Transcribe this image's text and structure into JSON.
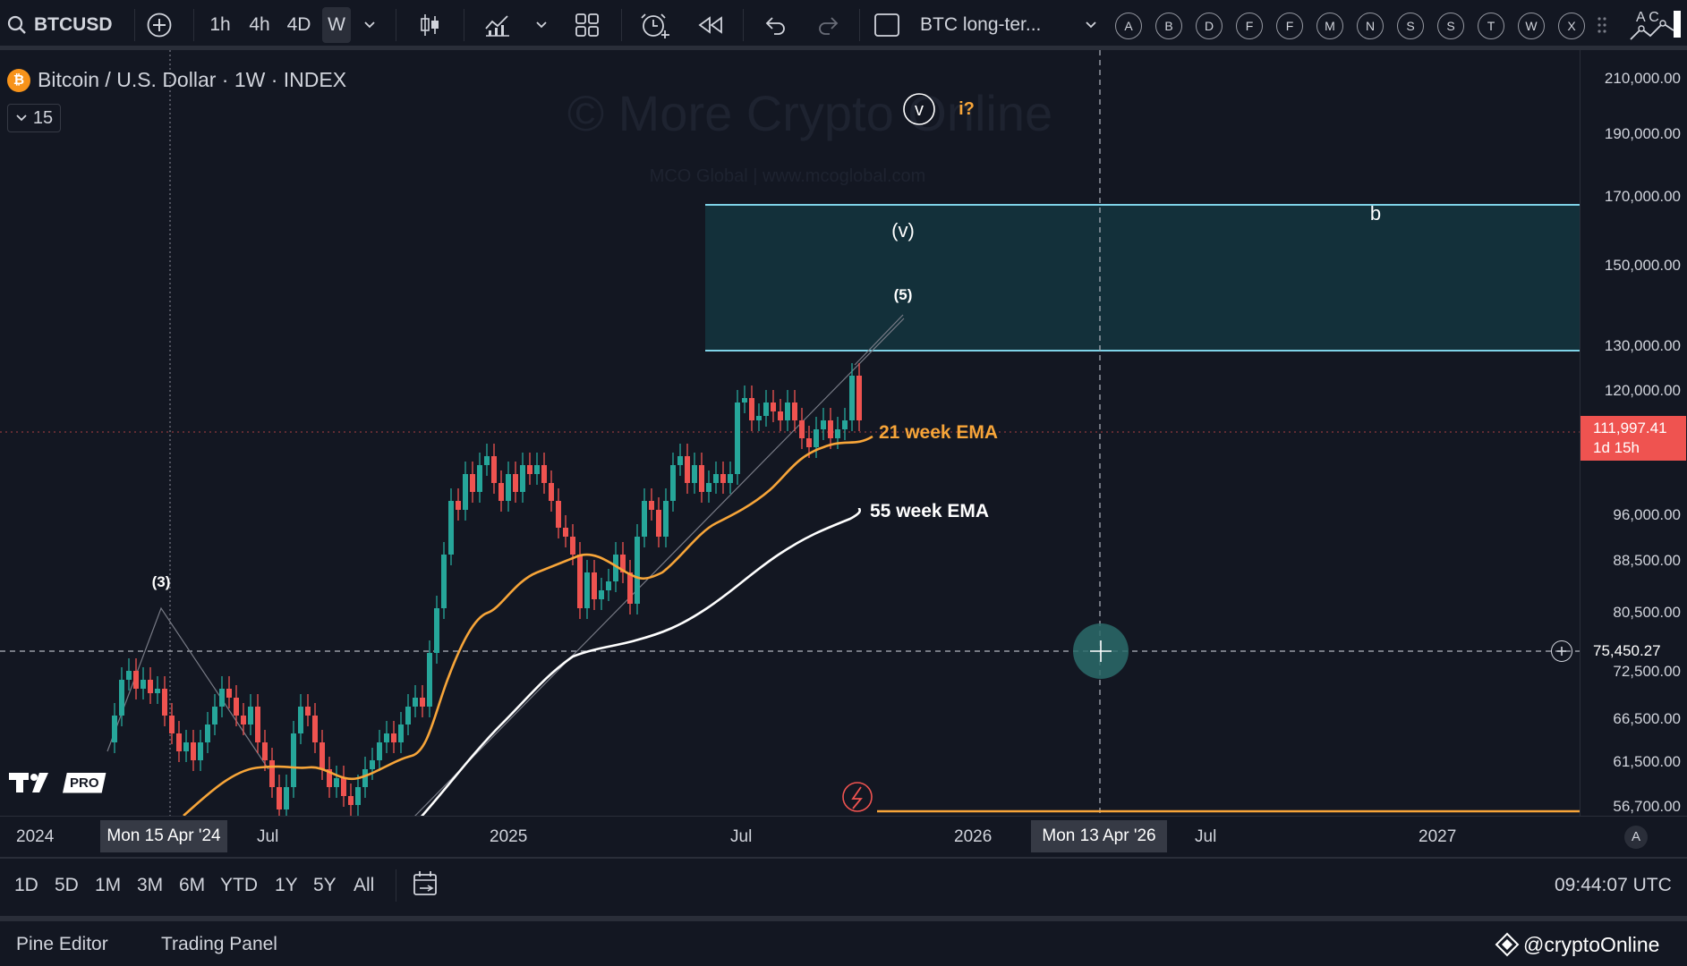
{
  "toolbar": {
    "symbol": "BTCUSD",
    "intervals": [
      "1h",
      "4h",
      "4D",
      "W"
    ],
    "active_interval": "W",
    "layout_name": "BTC long-ter...",
    "alphabet": [
      "A",
      "B",
      "D",
      "F",
      "F",
      "M",
      "N",
      "S",
      "S",
      "T",
      "W",
      "X"
    ]
  },
  "legend": {
    "title": "Bitcoin / U.S. Dollar · 1W · INDEX",
    "indicators_count": "15"
  },
  "watermark": {
    "main": "© More Crypto Online",
    "sub": "MCO Global  |  www.mcoglobal.com"
  },
  "labels": {
    "v_circle": "v",
    "i_question": "i?",
    "v_paren": "(v)",
    "five": "(5)",
    "three": "(3)",
    "b": "b",
    "ema21": "21 week EMA",
    "ema55": "55 week EMA"
  },
  "price_axis": [
    "210,000.00",
    "190,000.00",
    "170,000.00",
    "150,000.00",
    "130,000.00",
    "120,000.00",
    "96,000.00",
    "88,500.00",
    "80,500.00",
    "72,500.00",
    "66,500.00",
    "61,500.00",
    "56,700.00"
  ],
  "last_price": {
    "value": "111,997.41",
    "countdown": "1d 15h"
  },
  "crosshair_price": "75,450.27",
  "time_axis": {
    "labels": [
      "2024",
      "Jul",
      "2025",
      "Jul",
      "2026",
      "Jul",
      "2027"
    ],
    "highlight_left": "Mon 15 Apr '24",
    "highlight_right": "Mon 13 Apr '26",
    "auto_scale": "A"
  },
  "ranges": [
    "1D",
    "5D",
    "1M",
    "3M",
    "6M",
    "YTD",
    "1Y",
    "5Y",
    "All"
  ],
  "clock": "09:44:07 UTC",
  "panels": {
    "pine": "Pine Editor",
    "trading": "Trading Panel",
    "credit": "@cryptoOnline"
  },
  "logo_badge": "PRO",
  "colors": {
    "up": "#26a69a",
    "down": "#ef5350",
    "ema21": "#f7a539",
    "ema55": "#ffffff",
    "zone_line": "#7fd3e8"
  }
}
